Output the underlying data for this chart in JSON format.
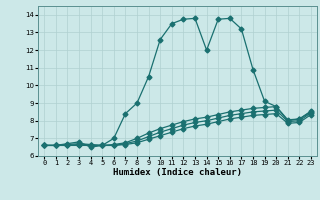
{
  "xlabel": "Humidex (Indice chaleur)",
  "bg_color": "#cce8e8",
  "grid_color": "#b0d0d0",
  "line_color": "#1a7070",
  "xlim": [
    -0.5,
    23.5
  ],
  "ylim": [
    6.0,
    14.5
  ],
  "yticks": [
    6,
    7,
    8,
    9,
    10,
    11,
    12,
    13,
    14
  ],
  "xticks": [
    0,
    1,
    2,
    3,
    4,
    5,
    6,
    7,
    8,
    9,
    10,
    11,
    12,
    13,
    14,
    15,
    16,
    17,
    18,
    19,
    20,
    21,
    22,
    23
  ],
  "line1_x": [
    0,
    1,
    2,
    3,
    4,
    5,
    6,
    7,
    8,
    9,
    10,
    11,
    12,
    13,
    14,
    15,
    16,
    17,
    18,
    19,
    20,
    21,
    22,
    23
  ],
  "line1_y": [
    6.6,
    6.6,
    6.7,
    6.8,
    6.5,
    6.6,
    7.0,
    8.4,
    9.0,
    10.5,
    12.6,
    13.5,
    13.75,
    13.8,
    12.0,
    13.75,
    13.8,
    13.2,
    10.9,
    9.1,
    8.8,
    8.0,
    8.1,
    8.5
  ],
  "line2_x": [
    0,
    1,
    2,
    3,
    4,
    5,
    6,
    7,
    8,
    9,
    10,
    11,
    12,
    13,
    14,
    15,
    16,
    17,
    18,
    19,
    20,
    21,
    22,
    23
  ],
  "line2_y": [
    6.6,
    6.6,
    6.65,
    6.7,
    6.65,
    6.6,
    6.65,
    6.75,
    7.0,
    7.3,
    7.55,
    7.75,
    7.95,
    8.1,
    8.2,
    8.35,
    8.5,
    8.6,
    8.7,
    8.75,
    8.8,
    8.05,
    8.1,
    8.55
  ],
  "line3_x": [
    0,
    1,
    2,
    3,
    4,
    5,
    6,
    7,
    8,
    9,
    10,
    11,
    12,
    13,
    14,
    15,
    16,
    17,
    18,
    19,
    20,
    21,
    22,
    23
  ],
  "line3_y": [
    6.6,
    6.6,
    6.6,
    6.65,
    6.6,
    6.6,
    6.6,
    6.7,
    6.85,
    7.1,
    7.35,
    7.55,
    7.75,
    7.9,
    8.0,
    8.15,
    8.3,
    8.4,
    8.5,
    8.55,
    8.6,
    7.95,
    8.0,
    8.45
  ],
  "line4_x": [
    0,
    1,
    2,
    3,
    4,
    5,
    6,
    7,
    8,
    9,
    10,
    11,
    12,
    13,
    14,
    15,
    16,
    17,
    18,
    19,
    20,
    21,
    22,
    23
  ],
  "line4_y": [
    6.6,
    6.6,
    6.6,
    6.6,
    6.6,
    6.6,
    6.6,
    6.65,
    6.75,
    6.95,
    7.15,
    7.35,
    7.55,
    7.7,
    7.8,
    7.95,
    8.1,
    8.2,
    8.3,
    8.35,
    8.4,
    7.85,
    7.9,
    8.35
  ]
}
